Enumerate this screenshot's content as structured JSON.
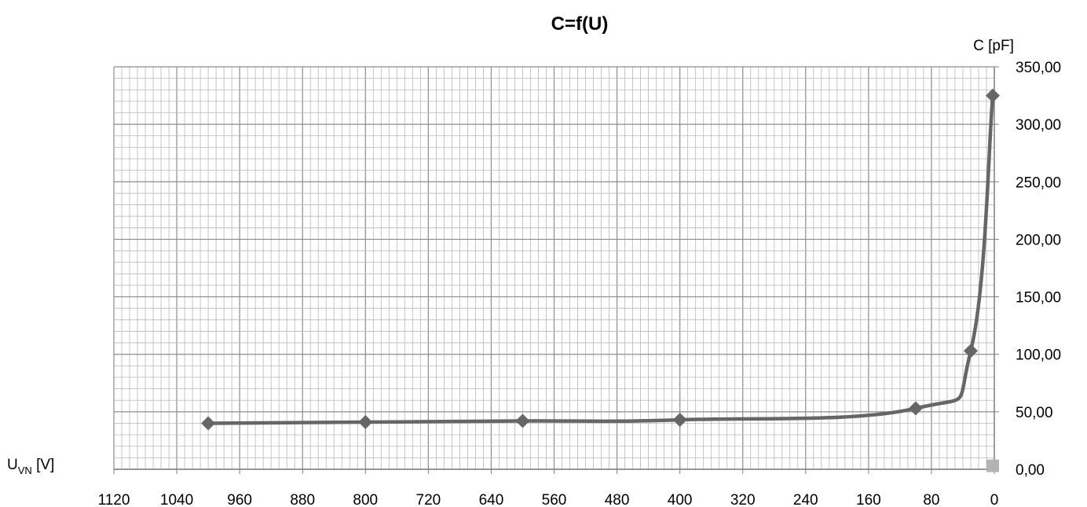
{
  "chart_data": {
    "type": "line",
    "title": "C=f(U)",
    "xlabel": {
      "main": "U",
      "sub": "VN",
      "unit": " [V]"
    },
    "ylabel": "C [pF]",
    "xlim": [
      1120,
      0
    ],
    "ylim": [
      0,
      350
    ],
    "x_reversed": true,
    "x_ticks": [
      "1120",
      "1040",
      "960",
      "880",
      "800",
      "720",
      "640",
      "560",
      "480",
      "400",
      "320",
      "240",
      "160",
      "80",
      "0"
    ],
    "y_ticks": [
      "0,00",
      "50,00",
      "100,00",
      "150,00",
      "200,00",
      "250,00",
      "300,00",
      "350,00"
    ],
    "grid": true,
    "legend": "none",
    "series": [
      {
        "x": [
          1000,
          800,
          600,
          400,
          100,
          30,
          2
        ],
        "y": [
          40,
          41,
          42,
          43,
          53,
          103,
          325
        ],
        "color": "#666666",
        "marker": "diamond"
      },
      {
        "x": [
          2
        ],
        "y": [
          3
        ],
        "color": "#b3b3b3",
        "marker": "square"
      }
    ]
  }
}
